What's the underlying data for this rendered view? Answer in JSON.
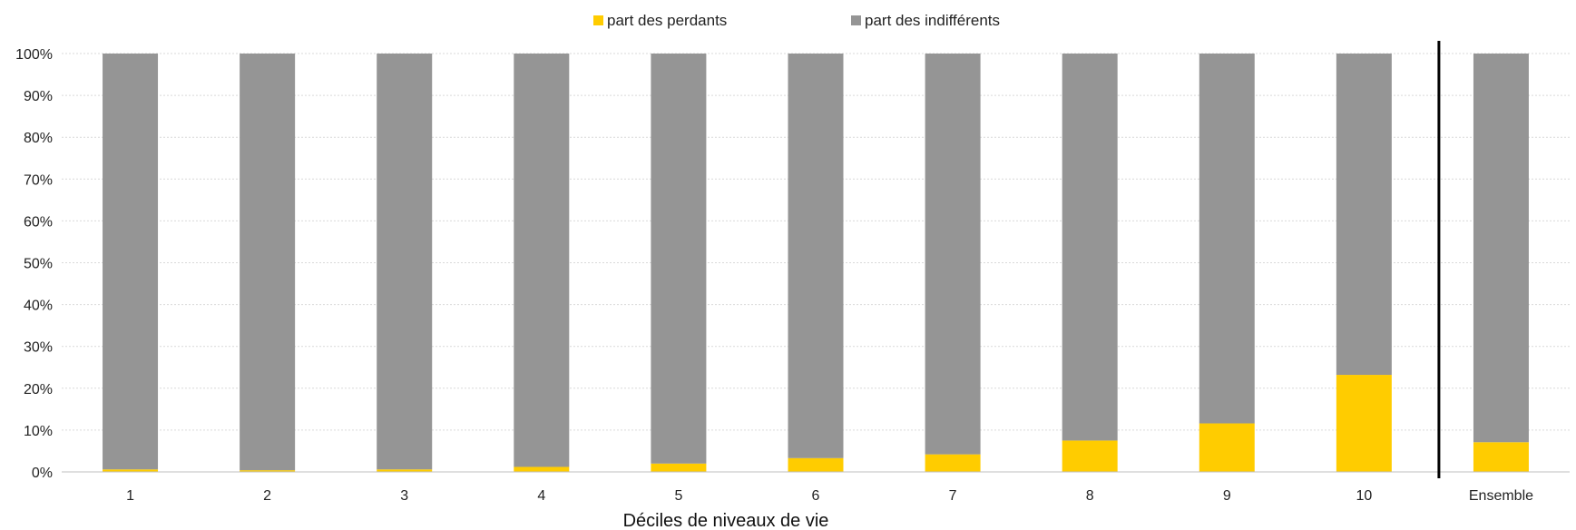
{
  "chart_data": {
    "type": "bar",
    "stacked": true,
    "categories": [
      "1",
      "2",
      "3",
      "4",
      "5",
      "6",
      "7",
      "8",
      "9",
      "10",
      "Ensemble"
    ],
    "series": [
      {
        "name": "part des perdants",
        "color": "#FFCC00",
        "values": [
          0.6,
          0.4,
          0.6,
          1.2,
          2.0,
          3.3,
          4.2,
          7.5,
          11.6,
          23.2,
          7.1
        ]
      },
      {
        "name": "part des indifférents",
        "color": "#959595",
        "values": [
          99.4,
          99.6,
          99.4,
          98.8,
          98.0,
          96.7,
          95.8,
          92.5,
          88.4,
          76.8,
          92.9
        ]
      }
    ],
    "yticks": [
      "0%",
      "10%",
      "20%",
      "30%",
      "40%",
      "50%",
      "60%",
      "70%",
      "80%",
      "90%",
      "100%"
    ],
    "ylim": [
      0,
      100
    ],
    "xlabel": "Déciles de niveaux de vie",
    "ylabel": "",
    "grid": true,
    "legend_position": "top",
    "separator_before": "Ensemble"
  }
}
